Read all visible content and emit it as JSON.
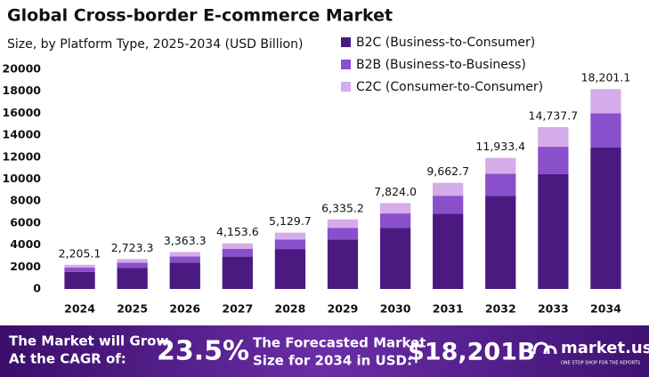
{
  "chart_data": {
    "type": "stacked-bar",
    "title": "Global Cross-border E-commerce Market",
    "subtitle": "Size, by Platform Type, 2025-2034 (USD Billion)",
    "categories": [
      "2024",
      "2025",
      "2026",
      "2027",
      "2028",
      "2029",
      "2030",
      "2031",
      "2032",
      "2033",
      "2034"
    ],
    "series": [
      {
        "name": "B2C (Business-to-Consumer)",
        "color": "#4b1a80",
        "values": [
          1560,
          1930,
          2385,
          2945,
          3635,
          4490,
          5545,
          6850,
          8460,
          10450,
          12900
        ]
      },
      {
        "name": "B2B (Business-to-Business)",
        "color": "#8a4fcb",
        "values": [
          380,
          465,
          570,
          705,
          870,
          1075,
          1330,
          1640,
          2025,
          2500,
          3090
        ]
      },
      {
        "name": "C2C (Consumer-to-Consumer)",
        "color": "#d3ace9",
        "values": [
          265,
          328,
          408,
          504,
          625,
          770,
          949,
          1173,
          1448,
          1788,
          2211
        ]
      }
    ],
    "totals": [
      2205.1,
      2723.3,
      3363.3,
      4153.6,
      5129.7,
      6335.2,
      7824.0,
      9662.7,
      11933.4,
      14737.7,
      18201.1
    ],
    "totals_labels": [
      "2,205.1",
      "2,723.3",
      "3,363.3",
      "4,153.6",
      "5,129.7",
      "6,335.2",
      "7,824.0",
      "9,662.7",
      "11,933.4",
      "14,737.7",
      "18,201.1"
    ],
    "ylim": [
      0,
      20000
    ],
    "yticks": [
      0,
      2000,
      4000,
      6000,
      8000,
      10000,
      12000,
      14000,
      16000,
      18000,
      20000
    ],
    "grid": false
  },
  "footer": {
    "cagr_text": [
      "The Market will Grow",
      "At the CAGR of:"
    ],
    "cagr": "23.5%",
    "forecast_text": [
      "The Forecasted Market",
      "Size for 2034 in USD:"
    ],
    "forecast": "$18,201B",
    "brand": "market.us",
    "tagline": "ONE STOP SHOP FOR THE REPORTS"
  }
}
